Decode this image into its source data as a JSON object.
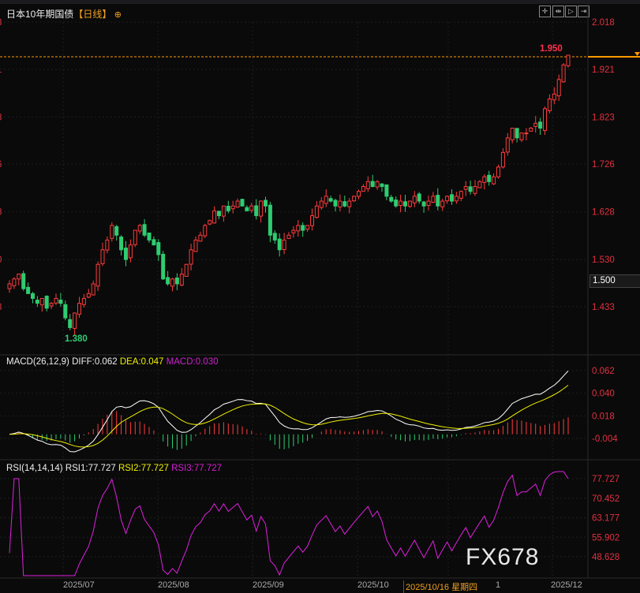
{
  "header": {
    "title": "日本10年期国债",
    "period": "【日线】",
    "globe_icon": "globe-icon",
    "tools": [
      "crosshair-icon",
      "fit-icon",
      "play-icon",
      "end-icon"
    ]
  },
  "chart_data": [
    {
      "type": "candlestick",
      "title": "日本10年期国债",
      "yaxis_ticks": [
        "2.018",
        "1.921",
        "1.823",
        "1.726",
        "1.628",
        "1.530",
        "1.433"
      ],
      "ylim": [
        1.35,
        2.04
      ],
      "last_price_label": "1.950",
      "current_marker": "1.500",
      "low_label": "1.380",
      "closes": [
        1.48,
        1.49,
        1.5,
        1.47,
        1.46,
        1.45,
        1.44,
        1.45,
        1.43,
        1.44,
        1.45,
        1.44,
        1.41,
        1.39,
        1.42,
        1.44,
        1.45,
        1.46,
        1.48,
        1.52,
        1.55,
        1.57,
        1.6,
        1.58,
        1.55,
        1.53,
        1.56,
        1.59,
        1.6,
        1.58,
        1.57,
        1.56,
        1.54,
        1.49,
        1.48,
        1.49,
        1.48,
        1.5,
        1.52,
        1.55,
        1.57,
        1.58,
        1.6,
        1.61,
        1.63,
        1.62,
        1.64,
        1.63,
        1.64,
        1.65,
        1.64,
        1.63,
        1.64,
        1.62,
        1.65,
        1.64,
        1.58,
        1.57,
        1.55,
        1.57,
        1.58,
        1.59,
        1.6,
        1.59,
        1.6,
        1.62,
        1.64,
        1.65,
        1.66,
        1.65,
        1.64,
        1.65,
        1.64,
        1.65,
        1.66,
        1.67,
        1.68,
        1.69,
        1.68,
        1.69,
        1.68,
        1.66,
        1.65,
        1.64,
        1.65,
        1.64,
        1.65,
        1.66,
        1.65,
        1.64,
        1.65,
        1.66,
        1.64,
        1.65,
        1.66,
        1.65,
        1.66,
        1.67,
        1.68,
        1.67,
        1.68,
        1.69,
        1.7,
        1.69,
        1.7,
        1.72,
        1.75,
        1.78,
        1.8,
        1.78,
        1.79,
        1.79,
        1.8,
        1.81,
        1.8,
        1.84,
        1.86,
        1.87,
        1.9,
        1.93,
        1.95
      ],
      "xaxis_ticks": [
        "2025/07",
        "2025/08",
        "2025/09",
        "2025/10",
        "2025/10/16 星期四",
        "1",
        "2025/12"
      ]
    },
    {
      "type": "macd",
      "label": "MACD(26,12,9)",
      "diff": "DIFF:0.062",
      "dea": "DEA:0.047",
      "macd": "MACD:0.030",
      "yaxis_ticks": [
        "0.062",
        "0.040",
        "0.018",
        "-0.004"
      ],
      "ylim": [
        -0.02,
        0.066
      ]
    },
    {
      "type": "rsi",
      "label": "RSI(14,14,14)",
      "rsi1": "RSI1:77.727",
      "rsi2": "RSI2:77.727",
      "rsi3": "RSI3:77.727",
      "yaxis_ticks": [
        "77.727",
        "70.452",
        "63.177",
        "55.902",
        "48.628"
      ]
    }
  ],
  "colors": {
    "up": "#ff3b3b",
    "down": "#2ecc71",
    "diff": "#ffffff",
    "dea": "#f0f000",
    "rsi": "#e020e0",
    "axis": "#e23040",
    "last": "#ff9900"
  },
  "watermark": "FX678"
}
